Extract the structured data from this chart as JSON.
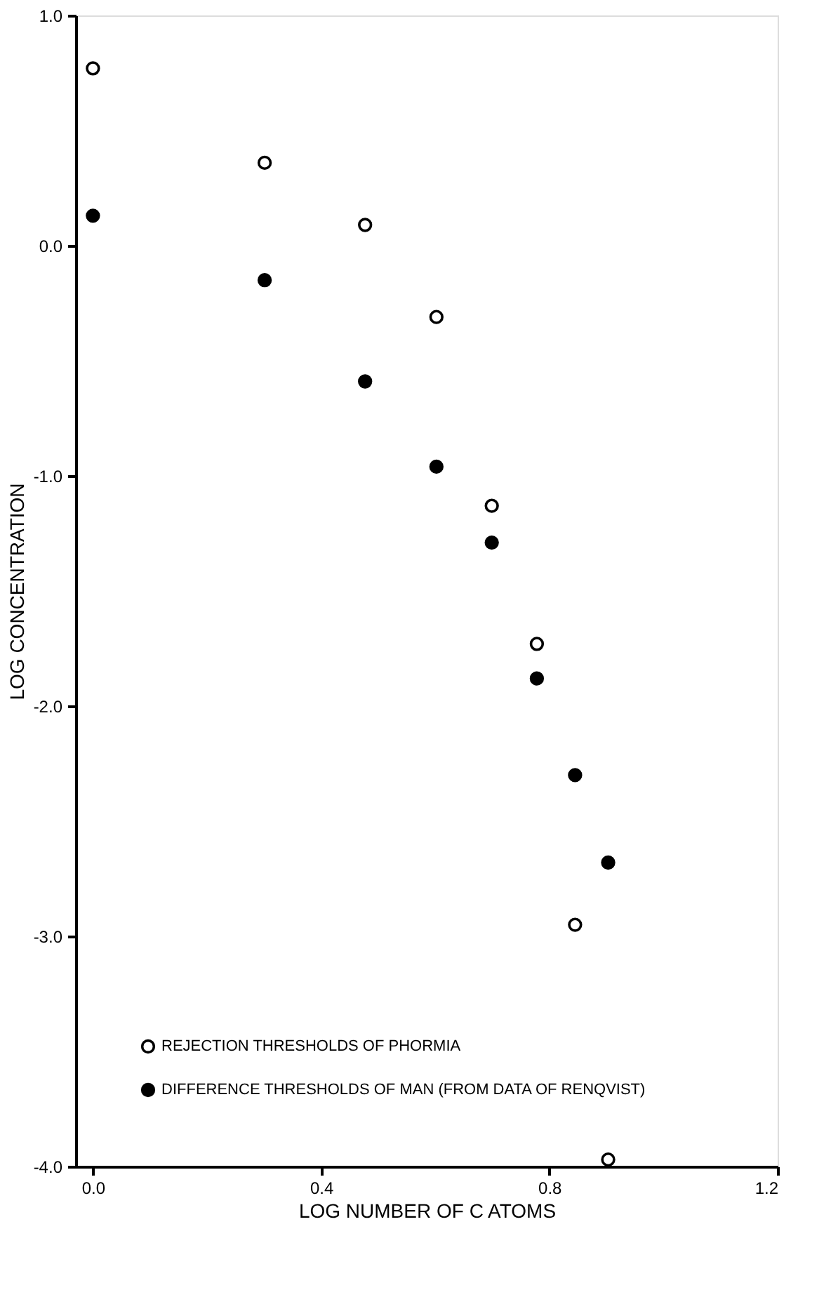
{
  "chart_data": {
    "type": "scatter",
    "xlabel": "LOG NUMBER OF C ATOMS",
    "ylabel": "LOG CONCENTRATION",
    "xlim": [
      -0.03,
      1.2
    ],
    "ylim": [
      -4.0,
      1.0
    ],
    "xticks": [
      {
        "value": 0,
        "label": "0.0"
      },
      {
        "value": 0.4,
        "label": "0.4"
      },
      {
        "value": 0.8,
        "label": "0.8"
      },
      {
        "value": 1.2,
        "label": "1.2"
      }
    ],
    "yticks": [
      {
        "value": 1,
        "label": "1.0"
      },
      {
        "value": 0,
        "label": "0.0"
      },
      {
        "value": -1,
        "label": "-1.0"
      },
      {
        "value": -2,
        "label": "-2.0"
      },
      {
        "value": -3,
        "label": "-3.0"
      },
      {
        "value": -4,
        "label": "-4.0"
      }
    ],
    "marker": "circle",
    "grid": false,
    "legend": "bottom left",
    "series": [
      {
        "name": "REJECTION THRESHOLDS OF PHORMIA",
        "color": "#ffffff",
        "x": [
          0,
          0.301,
          0.477,
          0.602,
          0.699,
          0.778,
          0.845,
          0.903
        ],
        "values": [
          0.77,
          0.36,
          0.09,
          -0.31,
          -1.13,
          -1.73,
          -2.95,
          -3.97
        ]
      },
      {
        "name": "DIFFERENCE THRESHOLDS OF MAN (FROM DATA OF RENQVIST)",
        "color": "#000000",
        "x": [
          0,
          0.301,
          0.477,
          0.602,
          0.699,
          0.778,
          0.845,
          0.903
        ],
        "values": [
          0.13,
          -0.15,
          -0.59,
          -0.96,
          -1.29,
          -1.88,
          -2.3,
          -2.68
        ]
      }
    ]
  }
}
